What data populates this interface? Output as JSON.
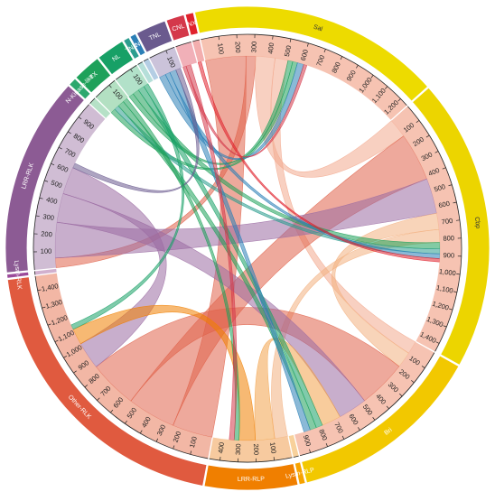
{
  "chart_data": {
    "type": "chord",
    "title": "",
    "groups": [
      {
        "name": "Sal",
        "value": 1250,
        "outer_color": "#eddb00",
        "inner_color": "#f4b8a4"
      },
      {
        "name": "Cbp",
        "value": 1450,
        "outer_color": "#ecd500",
        "inner_color": "#f4b8a4"
      },
      {
        "name": "Bri",
        "value": 960,
        "outer_color": "#f2c800",
        "inner_color": "#f4b8a4"
      },
      {
        "name": "Lysm-RLP",
        "value": 30,
        "outer_color": "#f7a300",
        "inner_color": "#f7c98a"
      },
      {
        "name": "LRR-RLP",
        "value": 460,
        "outer_color": "#f07f00",
        "inner_color": "#f6c18e"
      },
      {
        "name": "Other-RLK",
        "value": 1480,
        "outer_color": "#e05a3f",
        "inner_color": "#f0aa95"
      },
      {
        "name": "Lysm-RLK",
        "value": 20,
        "outer_color": "#9b4a9a",
        "inner_color": "#c9a2c6"
      },
      {
        "name": "LRR-RLK",
        "value": 990,
        "outer_color": "#8c5b94",
        "inner_color": "#c8b1cc"
      },
      {
        "name": "N-Kinase-like",
        "value": 40,
        "outer_color": "#2da86e",
        "inner_color": "#a9dcbd"
      },
      {
        "name": "TX",
        "value": 140,
        "outer_color": "#1ea15a",
        "inner_color": "#a6dbb7"
      },
      {
        "name": "NL",
        "value": 140,
        "outer_color": "#17a066",
        "inner_color": "#a4dcc0"
      },
      {
        "name": "TNX",
        "value": 30,
        "outer_color": "#2c9d8e",
        "inner_color": "#a8d9d2"
      },
      {
        "name": "N",
        "value": 30,
        "outer_color": "#2b7fb6",
        "inner_color": "#a7c6df"
      },
      {
        "name": "TNL",
        "value": 150,
        "outer_color": "#6a5a8e",
        "inner_color": "#c2b8d4"
      },
      {
        "name": "CNL",
        "value": 90,
        "outer_color": "#d4384a",
        "inner_color": "#efa2ab"
      },
      {
        "name": "NX",
        "value": 40,
        "outer_color": "#e0222d",
        "inner_color": "#f1a0a0"
      }
    ],
    "tick_step": 100,
    "tick_labels_every": 100,
    "links": [
      {
        "source": "Sal",
        "target": "Other-RLK",
        "value": 250,
        "color": "#e0624a"
      },
      {
        "source": "Sal",
        "target": "LRR-RLK",
        "value": 60,
        "color": "#e0624a"
      },
      {
        "source": "Sal",
        "target": "Cbp",
        "value": 120,
        "color": "#f2a98e"
      },
      {
        "source": "Sal",
        "target": "Bri",
        "value": 80,
        "color": "#f2a98e"
      },
      {
        "source": "Sal",
        "target": "NL",
        "value": 30,
        "color": "#1ea15a"
      },
      {
        "source": "Sal",
        "target": "TX",
        "value": 30,
        "color": "#1ea15a"
      },
      {
        "source": "Sal",
        "target": "TNL",
        "value": 40,
        "color": "#2b7fb6"
      },
      {
        "source": "Sal",
        "target": "CNL",
        "value": 20,
        "color": "#d4384a"
      },
      {
        "source": "Cbp",
        "target": "Other-RLK",
        "value": 300,
        "color": "#e0624a"
      },
      {
        "source": "Cbp",
        "target": "LRR-RLK",
        "value": 220,
        "color": "#9b6ca3"
      },
      {
        "source": "Cbp",
        "target": "Bri",
        "value": 100,
        "color": "#f3b080"
      },
      {
        "source": "Cbp",
        "target": "LRR-RLP",
        "value": 80,
        "color": "#f3b080"
      },
      {
        "source": "Cbp",
        "target": "NL",
        "value": 40,
        "color": "#1ea15a"
      },
      {
        "source": "Cbp",
        "target": "TX",
        "value": 30,
        "color": "#2c9d8e"
      },
      {
        "source": "Cbp",
        "target": "TNL",
        "value": 30,
        "color": "#2b7fb6"
      },
      {
        "source": "Cbp",
        "target": "NX",
        "value": 20,
        "color": "#e0222d"
      },
      {
        "source": "Bri",
        "target": "Other-RLK",
        "value": 300,
        "color": "#e0624a"
      },
      {
        "source": "Bri",
        "target": "LRR-RLK",
        "value": 180,
        "color": "#9b6ca3"
      },
      {
        "source": "Bri",
        "target": "LRR-RLP",
        "value": 120,
        "color": "#f3a24a"
      },
      {
        "source": "Bri",
        "target": "NL",
        "value": 40,
        "color": "#17a066"
      },
      {
        "source": "Bri",
        "target": "TX",
        "value": 40,
        "color": "#1ea15a"
      },
      {
        "source": "Bri",
        "target": "TNL",
        "value": 40,
        "color": "#2b7fb6"
      },
      {
        "source": "Other-RLK",
        "target": "LRR-RLK",
        "value": 170,
        "color": "#9b6ca3"
      },
      {
        "source": "Other-RLK",
        "target": "LRR-RLP",
        "value": 100,
        "color": "#f07f00"
      },
      {
        "source": "Other-RLK",
        "target": "NL",
        "value": 30,
        "color": "#17a066"
      },
      {
        "source": "LRR-RLK",
        "target": "TNL",
        "value": 30,
        "color": "#6a5a8e"
      },
      {
        "source": "LRR-RLP",
        "target": "TX",
        "value": 30,
        "color": "#1ea15a"
      },
      {
        "source": "LRR-RLP",
        "target": "CNL",
        "value": 30,
        "color": "#d4384a"
      }
    ]
  }
}
